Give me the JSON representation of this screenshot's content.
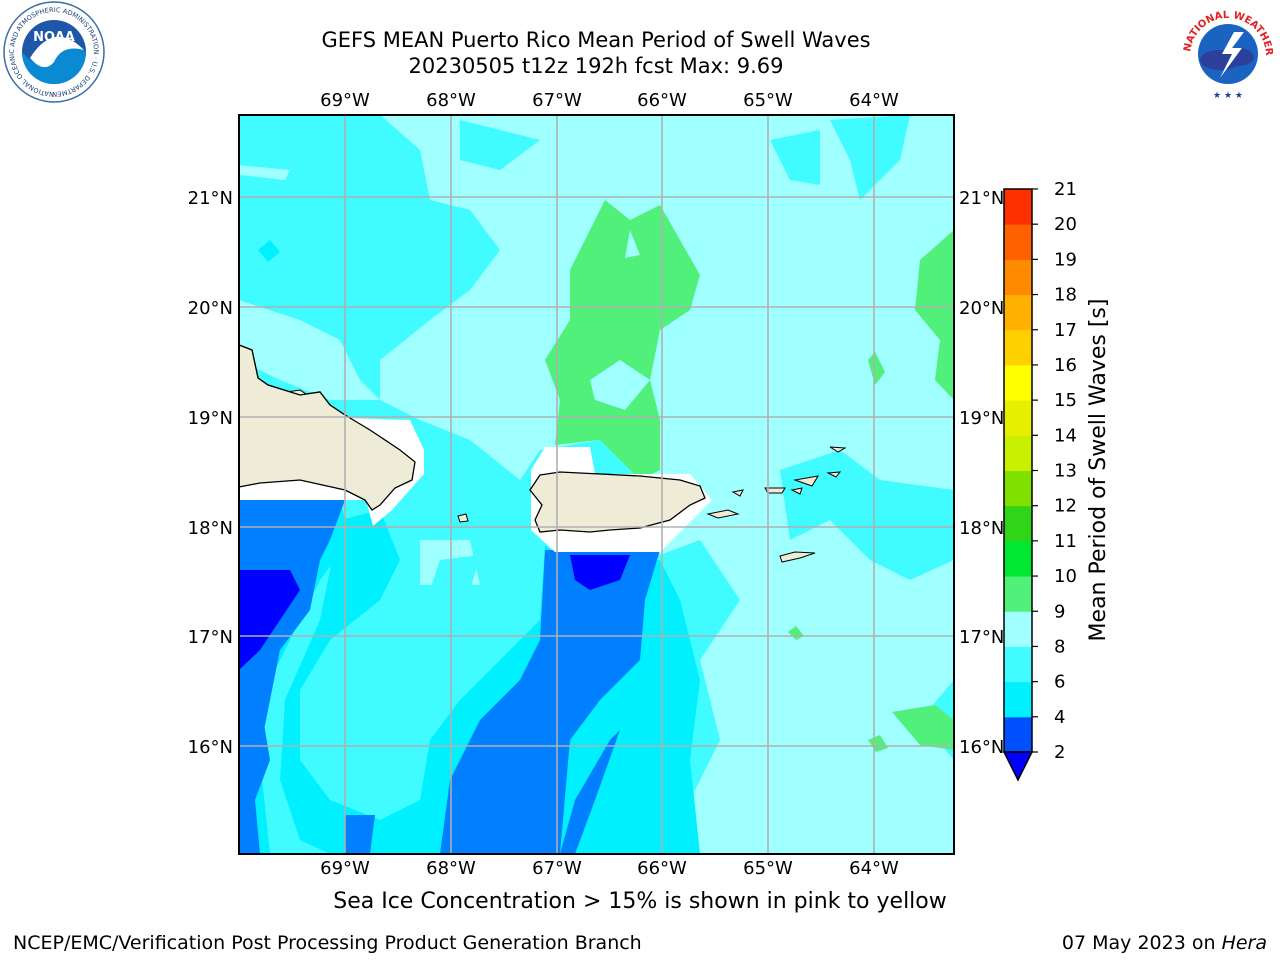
{
  "header": {
    "title_line1": "GEFS MEAN Puerto Rico Mean Period of Swell Waves",
    "title_line2": "20230505 t12z 192h fcst   Max: 9.69"
  },
  "logos": {
    "left": {
      "text": "NOAA",
      "ring_text": "NATIONAL OCEANIC AND ATMOSPHERIC ADMINISTRATION · U.S. DEPARTMENT OF COMMERCE"
    },
    "right": {
      "ring_text": "NATIONAL WEATHER SERVICE"
    }
  },
  "map": {
    "lon_labels": [
      "69°W",
      "68°W",
      "67°W",
      "66°W",
      "65°W",
      "64°W"
    ],
    "lat_labels": [
      "21°N",
      "20°N",
      "19°N",
      "18°N",
      "17°N",
      "16°N"
    ],
    "grid": true
  },
  "colorbar": {
    "label": "Mean Period of Swell Waves [s]",
    "ticks": [
      "2",
      "4",
      "6",
      "8",
      "9",
      "10",
      "11",
      "12",
      "13",
      "14",
      "15",
      "16",
      "17",
      "18",
      "19",
      "20",
      "21"
    ],
    "colors": [
      "#0050ff",
      "#00f0ff",
      "#40fbff",
      "#a0ffff",
      "#50f07a",
      "#00e830",
      "#30d418",
      "#80e000",
      "#c8f000",
      "#e8ee00",
      "#ffff00",
      "#ffd000",
      "#ffb000",
      "#ff8a00",
      "#ff6000",
      "#ff3000",
      "#ff0000"
    ],
    "under_color": "#0000ff"
  },
  "footer": {
    "subtitle": "Sea Ice Concentration > 15% is shown in pink to yellow",
    "credit": "NCEP/EMC/Verification Post Processing Product Generation Branch",
    "date": "07 May 2023 on",
    "machine": "Hera"
  }
}
